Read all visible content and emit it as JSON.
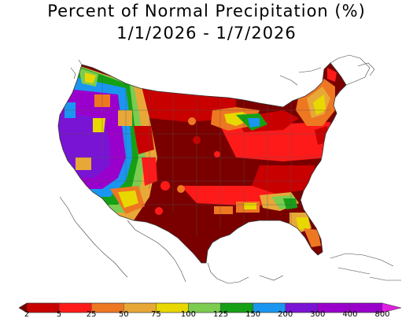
{
  "title": {
    "line1": "Percent of Normal Precipitation (%)",
    "line2": "1/1/2026 - 1/7/2026"
  },
  "legend": {
    "ticks": [
      "2",
      "5",
      "25",
      "50",
      "75",
      "100",
      "125",
      "150",
      "200",
      "300",
      "400",
      "800"
    ],
    "colors": [
      "#7a0000",
      "#c80000",
      "#ff1a1a",
      "#ee7722",
      "#e8a838",
      "#e8d800",
      "#7ccc50",
      "#16a016",
      "#1a96f0",
      "#7a14d4",
      "#9a00cc",
      "#e020e0"
    ]
  },
  "map": {
    "region": "Contiguous United States",
    "palette": {
      "very_dry": "#7a0000",
      "dry": "#c80000",
      "red": "#ff1a1a",
      "orange": "#ee7722",
      "tan": "#e8a838",
      "yellow": "#e8d800",
      "green": "#16a016",
      "lightgreen": "#7ccc50",
      "blue": "#1a96f0",
      "purple": "#7a14d4",
      "violet": "#9a00cc"
    }
  }
}
